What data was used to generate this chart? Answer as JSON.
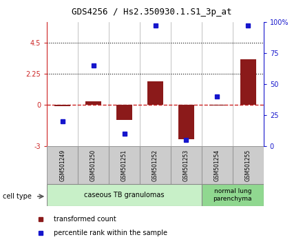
{
  "title": "GDS4256 / Hs2.350930.1.S1_3p_at",
  "samples": [
    "GSM501249",
    "GSM501250",
    "GSM501251",
    "GSM501252",
    "GSM501253",
    "GSM501254",
    "GSM501255"
  ],
  "transformed_count": [
    -0.08,
    0.25,
    -1.1,
    1.7,
    -2.5,
    -0.02,
    3.3
  ],
  "percentile_rank": [
    20,
    65,
    10,
    97,
    5,
    40,
    97
  ],
  "ylim_left": [
    -3,
    6
  ],
  "yticks_left": [
    -3,
    0,
    2.25,
    4.5
  ],
  "ylim_right": [
    0,
    100
  ],
  "yticks_right": [
    0,
    25,
    50,
    75,
    100
  ],
  "ytick_labels_right": [
    "0",
    "25",
    "50",
    "75",
    "100%"
  ],
  "hline_y": 0,
  "dotted_lines": [
    4.5,
    2.25
  ],
  "bar_color": "#8B1A1A",
  "dot_color": "#1515CC",
  "hline_color": "#CC2222",
  "group1_label": "caseous TB granulomas",
  "group2_label": "normal lung\nparenchyma",
  "group1_color": "#c8f0c8",
  "group2_color": "#90d890",
  "cell_type_label": "cell type",
  "legend_bar_label": "transformed count",
  "legend_dot_label": "percentile rank within the sample",
  "bar_width": 0.5,
  "left_axis_color": "#CC2222",
  "right_axis_color": "#1515CC",
  "sample_box_color": "#cccccc",
  "sample_box_line_color": "#999999"
}
